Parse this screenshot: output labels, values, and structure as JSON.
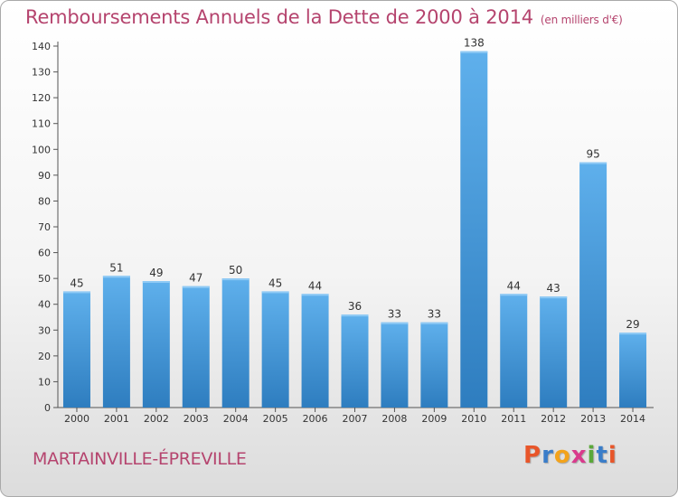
{
  "title": "Remboursements Annuels de la Dette de 2000 à 2014",
  "title_unit": "(en milliers d'€)",
  "location": "MARTAINVILLE-ÉPREVILLE",
  "logo": {
    "text": "Proxiti",
    "colors": [
      "#e8562a",
      "#3a7dc9",
      "#f3a31b",
      "#d93a8c",
      "#5aa839",
      "#3a7dc9",
      "#e8562a"
    ]
  },
  "colors": {
    "title": "#b5446e",
    "bar_light": "#5fb0ec",
    "bar_dark": "#2e7dbf"
  },
  "chart_data": {
    "type": "bar",
    "title": "Remboursements Annuels de la Dette de 2000 à 2014",
    "categories": [
      "2000",
      "2001",
      "2002",
      "2003",
      "2004",
      "2005",
      "2006",
      "2007",
      "2008",
      "2009",
      "2010",
      "2011",
      "2012",
      "2013",
      "2014"
    ],
    "values": [
      45,
      51,
      49,
      47,
      50,
      45,
      44,
      36,
      33,
      33,
      138,
      44,
      43,
      95,
      29
    ],
    "ylim": [
      0,
      140
    ],
    "yticks": [
      0,
      10,
      20,
      30,
      40,
      50,
      60,
      70,
      80,
      90,
      100,
      110,
      120,
      130,
      140
    ],
    "grid": false
  }
}
